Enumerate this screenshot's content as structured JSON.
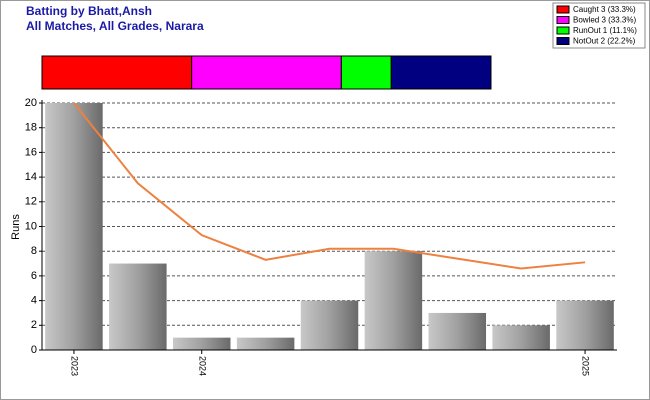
{
  "chart_data": {
    "type": "bar",
    "title": "Batting by Bhatt,Ansh",
    "subtitle": "All Matches, All Grades, Narara",
    "y_label": "Runs",
    "categories": [
      "2023",
      null,
      "2024",
      null,
      null,
      null,
      null,
      null,
      "2025"
    ],
    "values": [
      20,
      7,
      1,
      1,
      4,
      8,
      3,
      2,
      4
    ],
    "line_values": [
      20,
      13.5,
      9.3,
      7.3,
      8.2,
      8.2,
      7.4,
      6.6,
      7.1
    ],
    "line_color": "#ee8040",
    "ylim": [
      0,
      20
    ],
    "yticks": [
      0,
      2,
      4,
      6,
      8,
      10,
      12,
      14,
      16,
      18,
      20
    ],
    "grid": true,
    "dismissals": {
      "labels": [
        "Caught 3 (33.3%)",
        "Bowled 3 (33.3%)",
        "RunOut 1 (11.1%)",
        "NotOut 2 (22.2%)"
      ],
      "values": [
        3,
        3,
        1,
        2
      ],
      "colors": [
        "#ff0000",
        "#ff00ff",
        "#00ff00",
        "#000080"
      ]
    }
  }
}
